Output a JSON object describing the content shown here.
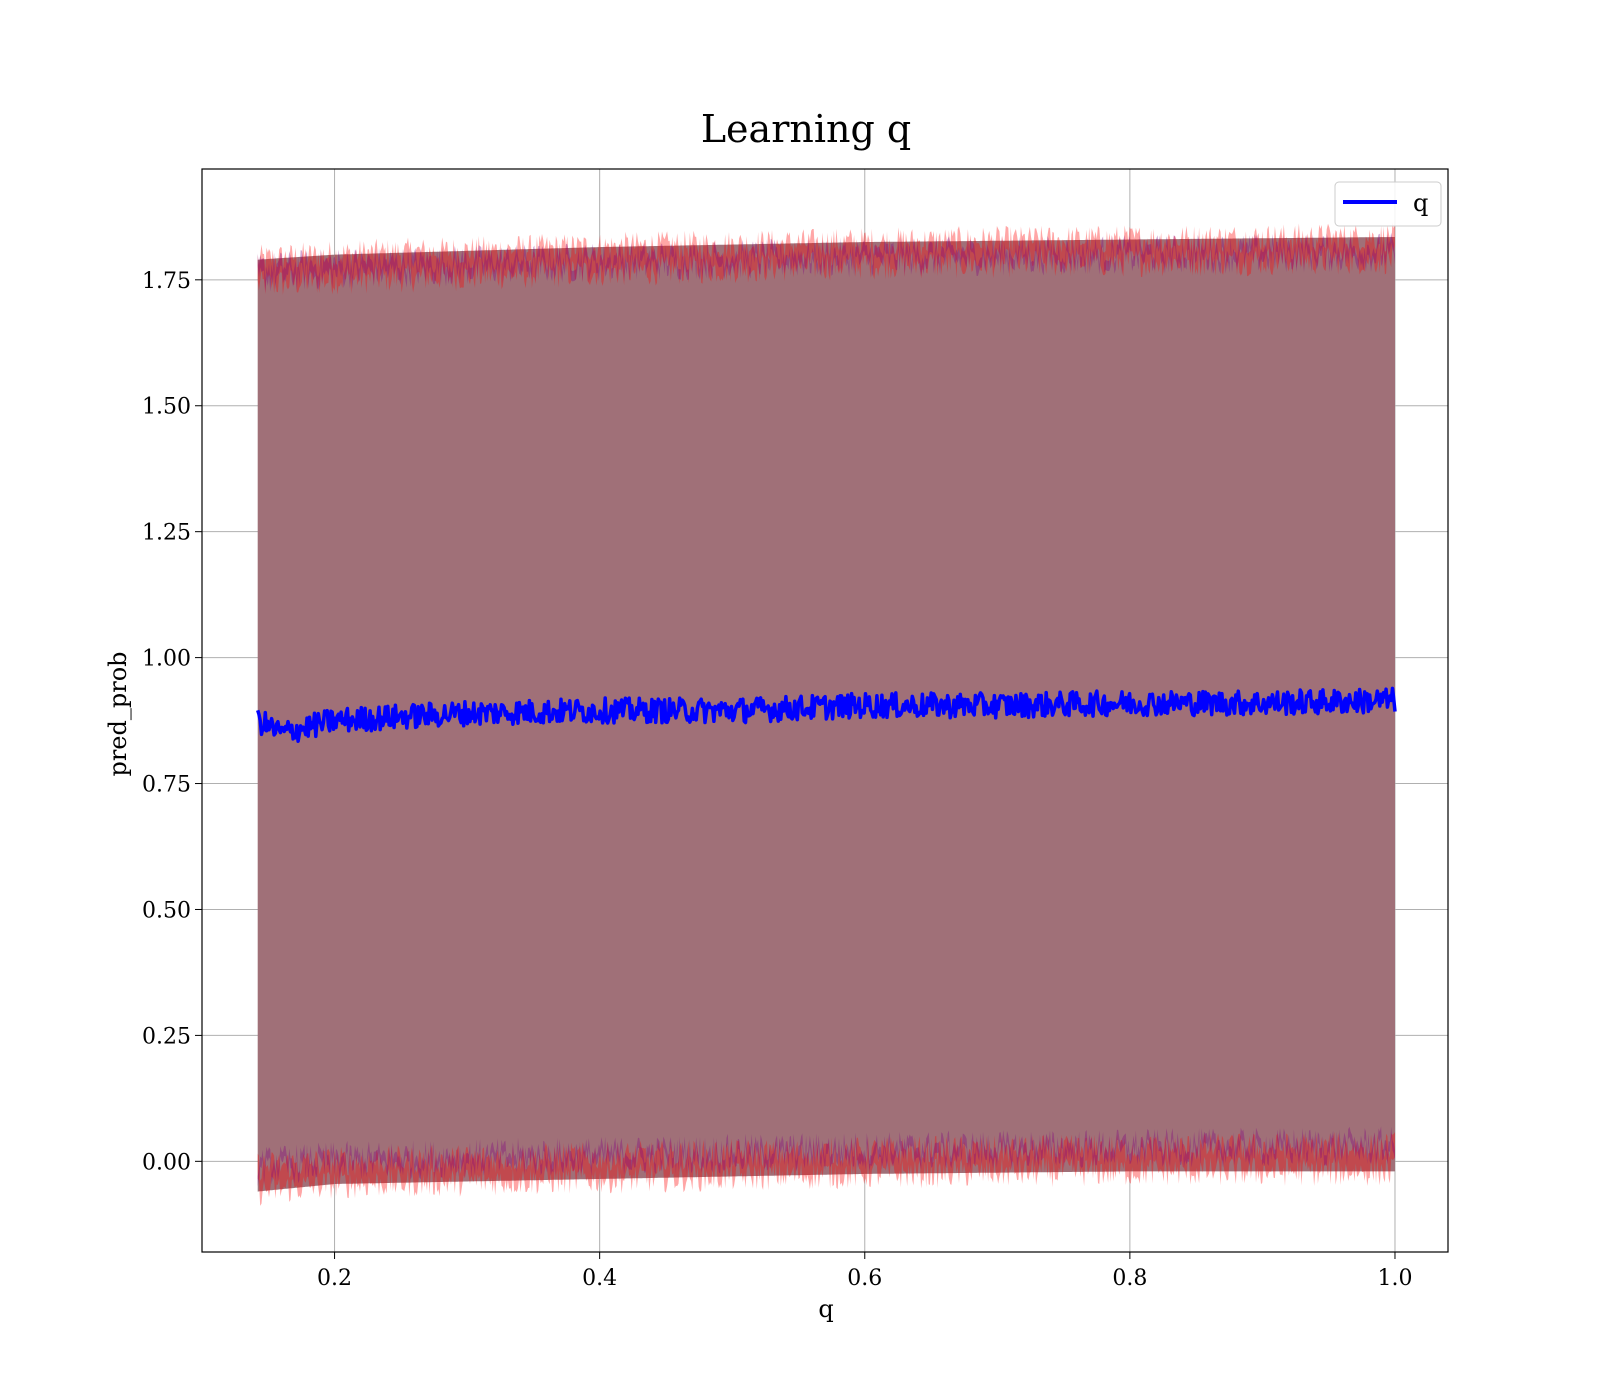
{
  "chart_data": {
    "type": "area",
    "title": "Learning q",
    "xlabel": "q",
    "ylabel": "pred_prob",
    "xlim": [
      0.1,
      1.04
    ],
    "ylim": [
      -0.18,
      1.97
    ],
    "xticks": [
      "0.2",
      "0.4",
      "0.6",
      "0.8",
      "1.0"
    ],
    "xtick_values": [
      0.2,
      0.4,
      0.6,
      0.8,
      1.0
    ],
    "yticks": [
      "0.00",
      "0.25",
      "0.50",
      "0.75",
      "1.00",
      "1.25",
      "1.50",
      "1.75"
    ],
    "ytick_values": [
      0.0,
      0.25,
      0.5,
      0.75,
      1.0,
      1.25,
      1.5,
      1.75
    ],
    "grid": true,
    "legend": {
      "position": "upper-right",
      "entries": [
        "q"
      ]
    },
    "x_range": [
      0.142,
      1.0
    ],
    "series": [
      {
        "name": "q",
        "color": "#0000ff",
        "x": [
          0.142,
          0.16,
          0.2,
          0.3,
          0.4,
          0.5,
          0.6,
          0.7,
          0.8,
          0.9,
          1.0
        ],
        "values": [
          0.875,
          0.85,
          0.875,
          0.89,
          0.895,
          0.895,
          0.905,
          0.905,
          0.91,
          0.91,
          0.915
        ]
      }
    ],
    "bands": [
      {
        "role": "upper-outer",
        "color": "#ff0000",
        "x": [
          0.142,
          0.2,
          0.4,
          0.6,
          0.8,
          1.0
        ],
        "low": [
          1.74,
          1.75,
          1.765,
          1.78,
          1.785,
          1.79
        ],
        "high": [
          1.79,
          1.8,
          1.815,
          1.825,
          1.83,
          1.835
        ]
      },
      {
        "role": "upper-inner",
        "color": "#800080",
        "x": [
          0.142,
          0.2,
          0.4,
          0.6,
          0.8,
          1.0
        ],
        "low": [
          1.75,
          1.76,
          1.775,
          1.785,
          1.79,
          1.795
        ],
        "high": [
          1.775,
          1.785,
          1.795,
          1.805,
          1.81,
          1.815
        ]
      },
      {
        "role": "lower-outer",
        "color": "#ff0000",
        "x": [
          0.142,
          0.2,
          0.4,
          0.6,
          0.8,
          1.0
        ],
        "low": [
          -0.06,
          -0.045,
          -0.035,
          -0.025,
          -0.02,
          -0.02
        ],
        "high": [
          -0.01,
          0.0,
          0.01,
          0.02,
          0.025,
          0.03
        ]
      },
      {
        "role": "lower-inner",
        "color": "#800080",
        "x": [
          0.142,
          0.2,
          0.4,
          0.6,
          0.8,
          1.0
        ],
        "low": [
          -0.02,
          -0.01,
          0.0,
          0.01,
          0.015,
          0.02
        ],
        "high": [
          0.0,
          0.01,
          0.02,
          0.03,
          0.035,
          0.04
        ]
      }
    ],
    "fill_color": "#a07078"
  }
}
